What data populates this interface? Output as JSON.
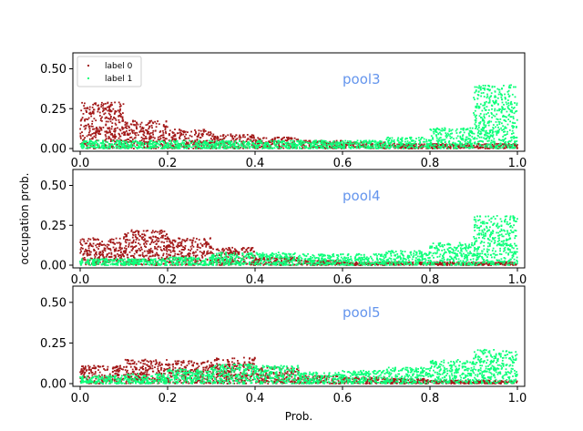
{
  "chart_data": {
    "type": "scatter",
    "xlabel": "Prob.",
    "ylabel": "occupation prob.",
    "xlim": [
      0,
      1
    ],
    "ylim": [
      0,
      0.6
    ],
    "x_ticks": [
      "0.0",
      "0.2",
      "0.4",
      "0.6",
      "0.8",
      "1.0"
    ],
    "y_ticks": [
      "0.00",
      "0.25",
      "0.50"
    ],
    "y_tick_values": [
      0,
      0.25,
      0.5
    ],
    "x_tick_values": [
      0,
      0.2,
      0.4,
      0.6,
      0.8,
      1.0
    ],
    "legend": {
      "placement": "upper-left",
      "entries": [
        "label 0",
        "label 1"
      ]
    },
    "colors": {
      "label 0": "#a31a1a",
      "label 1": "#0dff7a",
      "pool_label": "#6495ed"
    },
    "panels": [
      {
        "title": "pool3",
        "show_legend": true,
        "series": [
          {
            "name": "label 0",
            "color": "#a31a1a",
            "bands": [
              [
                0.0,
                0.1,
                0.29
              ],
              [
                0.1,
                0.2,
                0.18
              ],
              [
                0.2,
                0.3,
                0.12
              ],
              [
                0.3,
                0.4,
                0.09
              ],
              [
                0.4,
                0.5,
                0.07
              ],
              [
                0.5,
                0.6,
                0.05
              ],
              [
                0.6,
                0.7,
                0.04
              ],
              [
                0.7,
                0.8,
                0.03
              ],
              [
                0.8,
                0.9,
                0.03
              ],
              [
                0.9,
                1.0,
                0.03
              ]
            ]
          },
          {
            "name": "label 1",
            "color": "#0dff7a",
            "bands": [
              [
                0.0,
                0.1,
                0.05
              ],
              [
                0.1,
                0.2,
                0.05
              ],
              [
                0.2,
                0.3,
                0.05
              ],
              [
                0.3,
                0.4,
                0.05
              ],
              [
                0.4,
                0.5,
                0.05
              ],
              [
                0.5,
                0.6,
                0.05
              ],
              [
                0.6,
                0.7,
                0.05
              ],
              [
                0.7,
                0.8,
                0.07
              ],
              [
                0.8,
                0.9,
                0.13
              ],
              [
                0.9,
                1.0,
                0.4
              ]
            ]
          }
        ]
      },
      {
        "title": "pool4",
        "show_legend": false,
        "series": [
          {
            "name": "label 0",
            "color": "#a31a1a",
            "bands": [
              [
                0.0,
                0.1,
                0.17
              ],
              [
                0.1,
                0.2,
                0.22
              ],
              [
                0.2,
                0.3,
                0.17
              ],
              [
                0.3,
                0.4,
                0.11
              ],
              [
                0.4,
                0.5,
                0.05
              ],
              [
                0.5,
                0.6,
                0.03
              ],
              [
                0.6,
                0.7,
                0.02
              ],
              [
                0.7,
                0.8,
                0.02
              ],
              [
                0.8,
                0.9,
                0.02
              ],
              [
                0.9,
                1.0,
                0.02
              ]
            ]
          },
          {
            "name": "label 1",
            "color": "#0dff7a",
            "bands": [
              [
                0.0,
                0.1,
                0.04
              ],
              [
                0.1,
                0.2,
                0.04
              ],
              [
                0.2,
                0.3,
                0.05
              ],
              [
                0.3,
                0.4,
                0.08
              ],
              [
                0.4,
                0.5,
                0.08
              ],
              [
                0.5,
                0.6,
                0.07
              ],
              [
                0.6,
                0.7,
                0.07
              ],
              [
                0.7,
                0.8,
                0.09
              ],
              [
                0.8,
                0.9,
                0.14
              ],
              [
                0.9,
                1.0,
                0.31
              ]
            ]
          }
        ]
      },
      {
        "title": "pool5",
        "show_legend": false,
        "series": [
          {
            "name": "label 0",
            "color": "#a31a1a",
            "bands": [
              [
                0.0,
                0.1,
                0.11
              ],
              [
                0.1,
                0.2,
                0.15
              ],
              [
                0.2,
                0.3,
                0.14
              ],
              [
                0.3,
                0.4,
                0.16
              ],
              [
                0.4,
                0.5,
                0.1
              ],
              [
                0.5,
                0.6,
                0.05
              ],
              [
                0.6,
                0.7,
                0.04
              ],
              [
                0.7,
                0.8,
                0.03
              ],
              [
                0.8,
                0.9,
                0.02
              ],
              [
                0.9,
                1.0,
                0.02
              ]
            ]
          },
          {
            "name": "label 1",
            "color": "#0dff7a",
            "bands": [
              [
                0.0,
                0.1,
                0.05
              ],
              [
                0.1,
                0.2,
                0.06
              ],
              [
                0.2,
                0.3,
                0.09
              ],
              [
                0.3,
                0.4,
                0.12
              ],
              [
                0.4,
                0.5,
                0.11
              ],
              [
                0.5,
                0.6,
                0.07
              ],
              [
                0.6,
                0.7,
                0.08
              ],
              [
                0.7,
                0.8,
                0.1
              ],
              [
                0.8,
                0.9,
                0.15
              ],
              [
                0.9,
                1.0,
                0.21
              ]
            ]
          }
        ]
      }
    ]
  }
}
